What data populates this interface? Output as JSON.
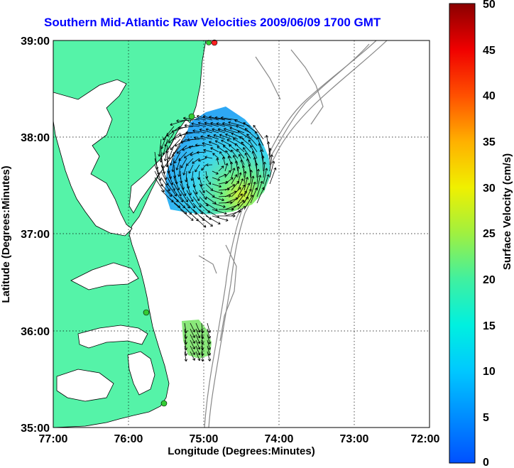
{
  "title": "Southern Mid-Atlantic Raw Velocities 2009/06/09 1700 GMT",
  "axes": {
    "xlabel": "Longitude (Degrees:Minutes)",
    "ylabel": "Latitude (Degrees:Minutes)",
    "x_ticks": [
      "77:00",
      "76:00",
      "75:00",
      "74:00",
      "73:00",
      "72:00"
    ],
    "y_ticks": [
      "39:00",
      "38:00",
      "37:00",
      "36:00",
      "35:00"
    ],
    "lon_range": [
      -77,
      -72
    ],
    "lat_range": [
      35,
      39
    ]
  },
  "colorbar": {
    "label": "Surface Velocity (cm/s)",
    "ticks": [
      "50",
      "45",
      "40",
      "35",
      "30",
      "25",
      "20",
      "15",
      "10",
      "5",
      "0"
    ],
    "min": 0,
    "max": 50
  },
  "colors": {
    "land": "#55f3a8",
    "water": "#ffffff",
    "title": "#0000ff",
    "station": "#33cc33",
    "station_alt": "#ff2222"
  }
}
